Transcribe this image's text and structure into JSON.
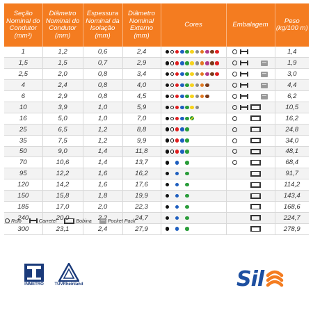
{
  "table": {
    "headers": [
      "Seção Nominal do Condutor (mm²)",
      "Diâmetro Nominal do Condutor (mm)",
      "Espessura Nominal da Isolação (mm)",
      "Diâmetro Nominal Externo (mm)",
      "Cores",
      "Embalagem",
      "Peso (kg/100 m)"
    ],
    "rows": [
      {
        "secao": "1",
        "diam_cond": "1,2",
        "espessura": "0,6",
        "diam_ext": "2,4",
        "peso": "1,4",
        "cores": [
          "#111111",
          "hollow",
          "#e02020",
          "#1f5fbf",
          "#2a9d3a",
          "#f6d21b",
          "#8a8a8a",
          "#e07820",
          "#b03a8a",
          "#7a3a1a",
          "#e02020"
        ],
        "pack": {
          "rolo": true,
          "carretel": true,
          "bobina": false,
          "pocket": false
        }
      },
      {
        "secao": "1,5",
        "diam_cond": "1,5",
        "espessura": "0,7",
        "diam_ext": "2,9",
        "peso": "1,9",
        "cores": [
          "#111111",
          "hollow",
          "#e02020",
          "#1f5fbf",
          "#2a9d3a",
          "#f6d21b",
          "#8a8a8a",
          "#e07820",
          "#b03a8a",
          "#7a3a1a",
          "#e02020"
        ],
        "pack": {
          "rolo": true,
          "carretel": true,
          "bobina": false,
          "pocket": true
        }
      },
      {
        "secao": "2,5",
        "diam_cond": "2,0",
        "espessura": "0,8",
        "diam_ext": "3,4",
        "peso": "3,0",
        "cores": [
          "#111111",
          "hollow",
          "#e02020",
          "#1f5fbf",
          "#2a9d3a",
          "#f6d21b",
          "#8a8a8a",
          "#e07820",
          "#b03a8a",
          "#7a3a1a",
          "#e02020"
        ],
        "pack": {
          "rolo": true,
          "carretel": true,
          "bobina": false,
          "pocket": true
        }
      },
      {
        "secao": "4",
        "diam_cond": "2,4",
        "espessura": "0,8",
        "diam_ext": "4,0",
        "peso": "4,4",
        "cores": [
          "#111111",
          "hollow",
          "#e02020",
          "#1f5fbf",
          "#2a9d3a",
          "#f6d21b",
          "#8a8a8a",
          "#e07820",
          "#7a3a1a"
        ],
        "pack": {
          "rolo": true,
          "carretel": true,
          "bobina": false,
          "pocket": true
        }
      },
      {
        "secao": "6",
        "diam_cond": "2,9",
        "espessura": "0,8",
        "diam_ext": "4,5",
        "peso": "6,2",
        "cores": [
          "#111111",
          "hollow",
          "#e02020",
          "#1f5fbf",
          "#2a9d3a",
          "#f6d21b",
          "#8a8a8a",
          "#e07820",
          "#7a3a1a"
        ],
        "pack": {
          "rolo": true,
          "carretel": true,
          "bobina": false,
          "pocket": true
        }
      },
      {
        "secao": "10",
        "diam_cond": "3,9",
        "espessura": "1,0",
        "diam_ext": "5,9",
        "peso": "10,5",
        "cores": [
          "#111111",
          "hollow",
          "#e02020",
          "#1f5fbf",
          "#2a9d3a",
          "#f6d21b",
          "#8a8a8a"
        ],
        "pack": {
          "rolo": true,
          "carretel": true,
          "bobina": true,
          "pocket": false
        }
      },
      {
        "secao": "16",
        "diam_cond": "5,0",
        "espessura": "1,0",
        "diam_ext": "7,0",
        "peso": "16,2",
        "cores": [
          "#111111",
          "hollow",
          "#e02020",
          "#1f5fbf",
          "#2a9d3a",
          "striped"
        ],
        "pack": {
          "rolo": true,
          "carretel": false,
          "bobina": true,
          "pocket": false
        }
      },
      {
        "secao": "25",
        "diam_cond": "6,5",
        "espessura": "1,2",
        "diam_ext": "8,8",
        "peso": "24,8",
        "cores": [
          "#111111",
          "hollow",
          "#e02020",
          "#1f5fbf",
          "#2a9d3a"
        ],
        "pack": {
          "rolo": true,
          "carretel": false,
          "bobina": true,
          "pocket": false
        }
      },
      {
        "secao": "35",
        "diam_cond": "7,5",
        "espessura": "1,2",
        "diam_ext": "9,9",
        "peso": "34,0",
        "cores": [
          "#111111",
          "hollow",
          "#e02020",
          "#1f5fbf",
          "#2a9d3a"
        ],
        "pack": {
          "rolo": true,
          "carretel": false,
          "bobina": true,
          "pocket": false
        }
      },
      {
        "secao": "50",
        "diam_cond": "9,0",
        "espessura": "1,4",
        "diam_ext": "11,8",
        "peso": "48,1",
        "cores": [
          "#111111",
          "hollow",
          "#e02020",
          "#1f5fbf",
          "#2a9d3a"
        ],
        "pack": {
          "rolo": true,
          "carretel": false,
          "bobina": true,
          "pocket": false
        }
      },
      {
        "secao": "70",
        "diam_cond": "10,6",
        "espessura": "1,4",
        "diam_ext": "13,7",
        "peso": "68,4",
        "cores": [
          "#111111",
          "",
          "#1f5fbf",
          "",
          "#2a9d3a"
        ],
        "pack": {
          "rolo": true,
          "carretel": false,
          "bobina": true,
          "pocket": false
        }
      },
      {
        "secao": "95",
        "diam_cond": "12,2",
        "espessura": "1,6",
        "diam_ext": "16,2",
        "peso": "91,7",
        "cores": [
          "#111111",
          "",
          "#1f5fbf",
          "",
          "#2a9d3a"
        ],
        "pack": {
          "rolo": false,
          "carretel": false,
          "bobina": true,
          "pocket": false
        }
      },
      {
        "secao": "120",
        "diam_cond": "14,2",
        "espessura": "1,6",
        "diam_ext": "17,6",
        "peso": "114,2",
        "cores": [
          "#111111",
          "",
          "#1f5fbf",
          "",
          "#2a9d3a"
        ],
        "pack": {
          "rolo": false,
          "carretel": false,
          "bobina": true,
          "pocket": false
        }
      },
      {
        "secao": "150",
        "diam_cond": "15,8",
        "espessura": "1,8",
        "diam_ext": "19,9",
        "peso": "143,4",
        "cores": [
          "#111111",
          "",
          "#1f5fbf",
          "",
          "#2a9d3a"
        ],
        "pack": {
          "rolo": false,
          "carretel": false,
          "bobina": true,
          "pocket": false
        }
      },
      {
        "secao": "185",
        "diam_cond": "17,0",
        "espessura": "2,0",
        "diam_ext": "22,3",
        "peso": "168,6",
        "cores": [
          "#111111",
          "",
          "#1f5fbf",
          "",
          "#2a9d3a"
        ],
        "pack": {
          "rolo": false,
          "carretel": false,
          "bobina": true,
          "pocket": false
        }
      },
      {
        "secao": "240",
        "diam_cond": "20,0",
        "espessura": "2,2",
        "diam_ext": "24,7",
        "peso": "224,7",
        "cores": [
          "#111111",
          "",
          "#1f5fbf",
          "",
          "#2a9d3a"
        ],
        "pack": {
          "rolo": false,
          "carretel": false,
          "bobina": true,
          "pocket": false
        }
      },
      {
        "secao": "300",
        "diam_cond": "23,1",
        "espessura": "2,4",
        "diam_ext": "27,9",
        "peso": "278,9",
        "cores": [
          "#111111",
          "",
          "#1f5fbf",
          "",
          "#2a9d3a"
        ],
        "pack": {
          "rolo": false,
          "carretel": false,
          "bobina": true,
          "pocket": false
        }
      }
    ]
  },
  "legend": {
    "rolo": "Rolo",
    "carretel": "Carretel",
    "bobina": "Bobina",
    "pocket": "Pocket Pack"
  },
  "logos": {
    "inmetro": "INMETRO",
    "tuv": "TÜVRheinland",
    "brand": "Sil"
  },
  "colors": {
    "header_bg": "#f47c20",
    "brand_blue": "#1d4fa0",
    "brand_orange": "#f47c20"
  }
}
